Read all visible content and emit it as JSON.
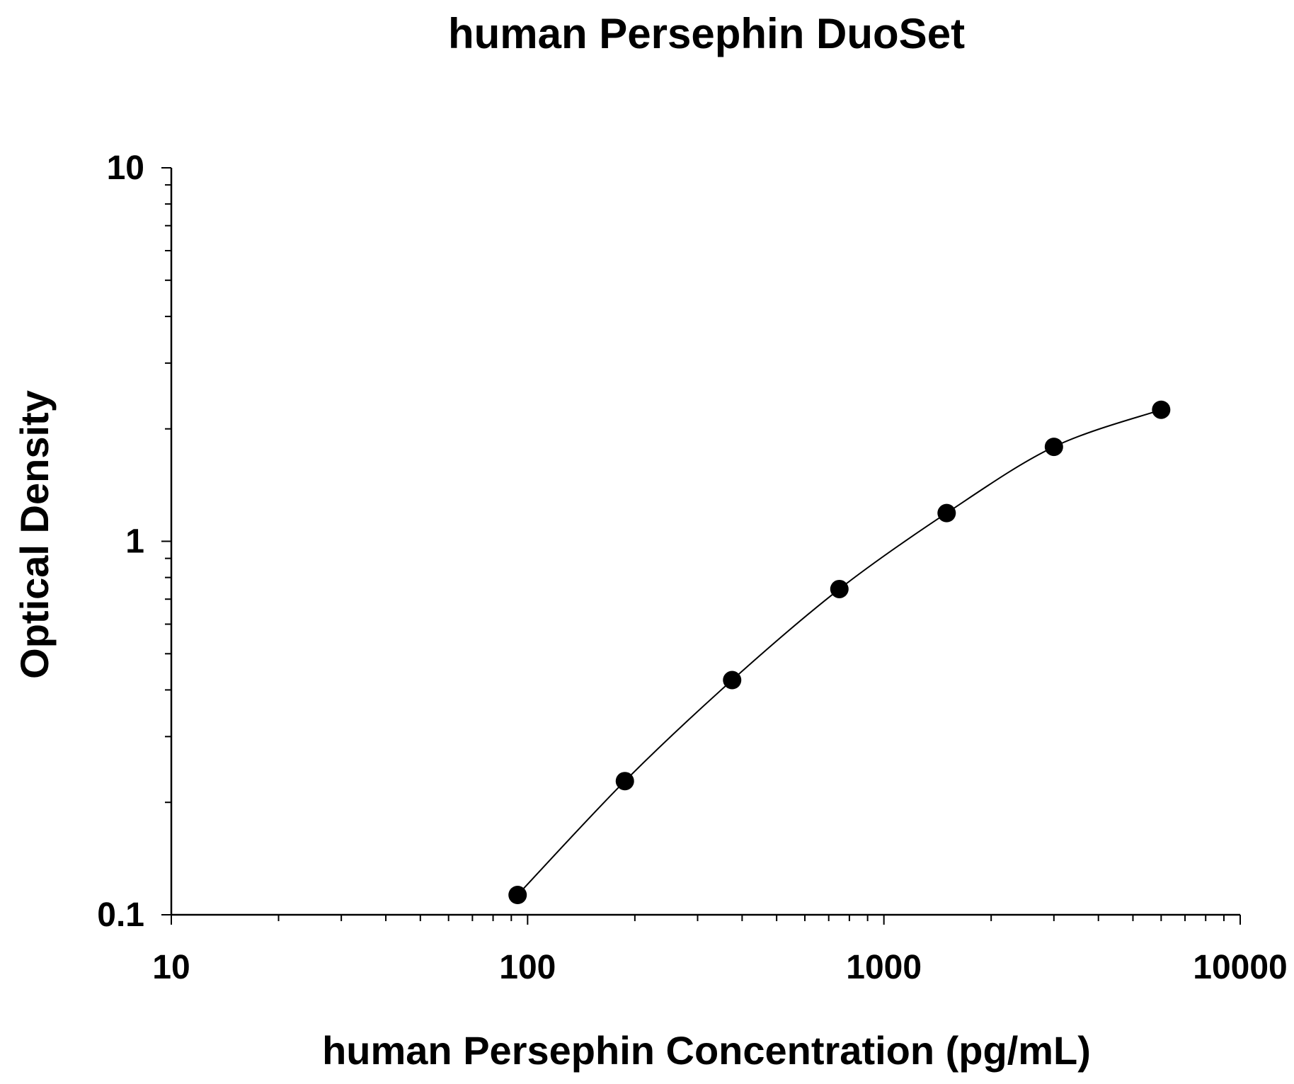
{
  "chart_data": {
    "type": "scatter",
    "title": "human Persephin DuoSet",
    "xlabel": "human Persephin Concentration (pg/mL)",
    "ylabel": "Optical Density",
    "x_scale": "log",
    "y_scale": "log",
    "xlim": [
      10,
      10000
    ],
    "ylim": [
      0.1,
      10
    ],
    "x_ticks": [
      "10",
      "100",
      "1000",
      "10000"
    ],
    "y_ticks": [
      "0.1",
      "1",
      "10"
    ],
    "grid": false,
    "legend": "none",
    "series": [
      {
        "points": [
          {
            "x": 93.75,
            "y": 0.113
          },
          {
            "x": 187.5,
            "y": 0.228
          },
          {
            "x": 375,
            "y": 0.425
          },
          {
            "x": 750,
            "y": 0.745
          },
          {
            "x": 1500,
            "y": 1.19
          },
          {
            "x": 3000,
            "y": 1.79
          },
          {
            "x": 6000,
            "y": 2.25
          }
        ]
      }
    ],
    "fit_curve": {
      "type": "four-parameter logistic",
      "x_range": [
        93.75,
        6000
      ]
    },
    "colors": {
      "marker": "#000000",
      "line": "#000000",
      "axis": "#000000"
    }
  }
}
